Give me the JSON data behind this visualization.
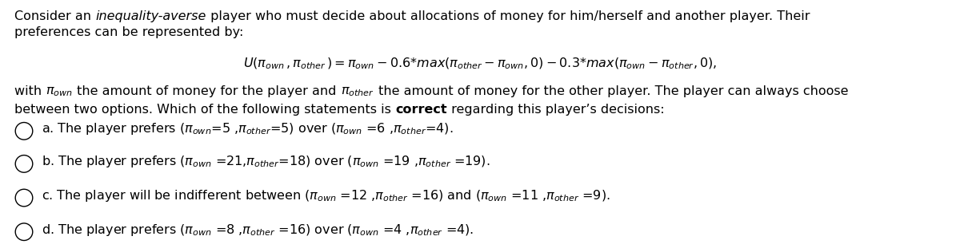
{
  "bg_color": "#ffffff",
  "fig_width": 12.0,
  "fig_height": 3.16,
  "dpi": 100,
  "font_size_main": 11.5,
  "font_size_formula": 11.5,
  "text_color": "#000000",
  "line1_plain": "Consider an ",
  "line1_italic": "inequality-averse",
  "line1_rest": " player who must decide about allocations of money for him/herself and another player. Their",
  "line2": "preferences can be represented by:",
  "formula_mathtext": "$U(\\pi_{own}\\,,\\pi_{other}\\,)= \\pi_{own} - 0.6{*}max(\\pi_{other} - \\pi_{own}, 0) - 0.3{*}max(\\pi_{own} - \\pi_{other}, 0),$",
  "body1_plain": "with ",
  "body1_pi": "$\\pi_{own}$",
  "body1_mid": " the amount of money for the player and ",
  "body1_pi2": "$\\pi_{other}$",
  "body1_rest": " the amount of money for the other player. The player can always choose",
  "body2_pre": "between two options. Which of the following statements is ",
  "body2_bold": "correct",
  "body2_post": " regarding this player’s decisions:",
  "opt_a_pre": "a. The player prefers (",
  "opt_a_pi1": "$\\pi_{own}$",
  "opt_a_mid1": "=5 ,",
  "opt_a_pi2": "$\\pi_{other}$",
  "opt_a_mid2": "=5) over (",
  "opt_a_pi3": "$\\pi_{own}$",
  "opt_a_mid3": " =6 ,",
  "opt_a_pi4": "$\\pi_{other}$",
  "opt_a_post": "=4).",
  "option_a_mt": "a. The player prefers ($\\pi_{own}$=5 ,$\\pi_{other}$=5) over ($\\pi_{own}$ =6 ,$\\pi_{other}$=4).",
  "option_b_mt": "b. The player prefers ($\\pi_{own}$ =21,$\\pi_{other}$=18) over ($\\pi_{own}$ =19 ,$\\pi_{other}$ =19).",
  "option_c_mt": "c. The player will be indifferent between ($\\pi_{own}$ =12 ,$\\pi_{other}$ =16) and ($\\pi_{own}$ =11 ,$\\pi_{other}$ =9).",
  "option_d_mt": "d. The player prefers ($\\pi_{own}$ =8 ,$\\pi_{other}$ =16) over ($\\pi_{own}$ =4 ,$\\pi_{other}$ =4)."
}
